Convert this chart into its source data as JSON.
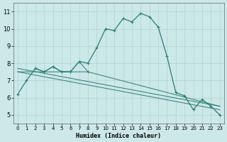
{
  "xlabel": "Humidex (Indice chaleur)",
  "bg_color": "#cce8e8",
  "line_color": "#2d7d6e",
  "x_ticks": [
    0,
    1,
    2,
    3,
    4,
    5,
    6,
    7,
    8,
    9,
    10,
    11,
    12,
    13,
    14,
    15,
    16,
    17,
    18,
    19,
    20,
    21,
    22,
    23
  ],
  "y_ticks": [
    5,
    6,
    7,
    8,
    9,
    10,
    11
  ],
  "xlim": [
    -0.5,
    23.5
  ],
  "ylim": [
    4.5,
    11.5
  ],
  "series1_x": [
    0,
    1,
    2,
    3,
    4,
    5,
    6,
    7,
    8,
    9,
    10,
    11,
    12,
    13,
    14,
    15,
    16,
    17,
    18,
    19,
    20,
    21,
    22,
    23
  ],
  "series1_y": [
    6.2,
    7.0,
    7.7,
    7.5,
    7.8,
    7.5,
    7.5,
    8.1,
    8.0,
    8.9,
    10.0,
    9.9,
    10.6,
    10.4,
    10.9,
    10.7,
    10.1,
    8.4,
    6.3,
    6.1,
    5.3,
    5.9,
    5.5,
    5.0
  ],
  "series2_x": [
    0,
    23
  ],
  "series2_y": [
    7.7,
    5.5
  ],
  "series3_x": [
    0,
    23
  ],
  "series3_y": [
    7.5,
    5.3
  ],
  "series4_x": [
    0,
    8,
    23
  ],
  "series4_y": [
    7.5,
    7.5,
    5.5
  ],
  "series5_x": [
    2,
    3,
    4,
    5,
    6,
    7,
    8
  ],
  "series5_y": [
    7.7,
    7.5,
    7.8,
    7.5,
    7.5,
    8.1,
    7.5
  ],
  "xlabel_fontsize": 6.0,
  "tick_fontsize_x": 5.0,
  "tick_fontsize_y": 6.0
}
